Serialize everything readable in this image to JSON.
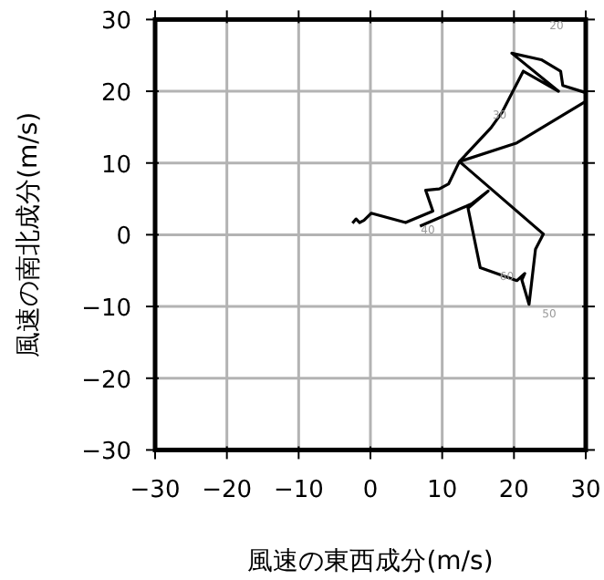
{
  "chart_data": {
    "type": "line",
    "xlabel": "風速の東西成分(m/s)",
    "ylabel": "風速の南北成分(m/s)",
    "xlim": [
      -30,
      30
    ],
    "ylim": [
      -30,
      30
    ],
    "xticks": [
      -30,
      -20,
      -10,
      0,
      10,
      20,
      30
    ],
    "yticks": [
      -30,
      -20,
      -10,
      0,
      10,
      20,
      30
    ],
    "grid": true,
    "series": [
      {
        "color": "#000000",
        "x": [
          -2.5,
          -2.0,
          -1.5,
          -0.9,
          0.1,
          4.9,
          8.7,
          7.7,
          9.6,
          10.9,
          12.4,
          20.4,
          30.0,
          30.0,
          26.8,
          26.5,
          23.8,
          19.7,
          26.2,
          21.3,
          18.3,
          16.8,
          12.4,
          24.1,
          23.0,
          22.1,
          21.1,
          21.5,
          20.4,
          15.3,
          13.6,
          16.4,
          14.1,
          6.9
        ],
        "values": [
          1.6,
          2.2,
          1.7,
          2.0,
          3.0,
          1.7,
          3.3,
          6.2,
          6.4,
          7.1,
          10.2,
          12.8,
          18.6,
          19.8,
          20.8,
          22.8,
          24.4,
          25.3,
          20.0,
          22.8,
          17.0,
          14.9,
          10.2,
          0.1,
          -2.0,
          -9.7,
          -6.3,
          -5.4,
          -6.4,
          -4.6,
          3.7,
          6.1,
          4.3,
          1.2
        ]
      }
    ],
    "annotations": [
      "20",
      {
        "text": "30",
        "x": 18,
        "y": 17
      },
      {
        "text": "40",
        "x": 8,
        "y": 1
      },
      {
        "text": "60",
        "x": 19,
        "y": -5.5
      },
      "50"
    ]
  }
}
